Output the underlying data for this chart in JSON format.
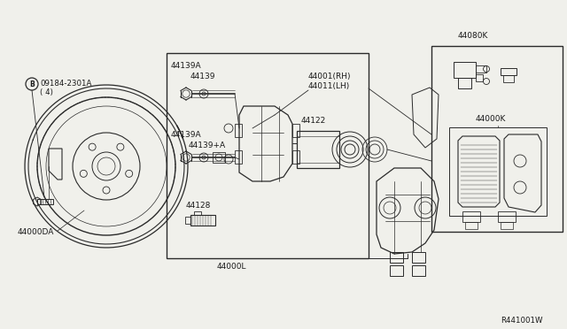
{
  "bg_color": "#f0f0eb",
  "line_color": "#2a2a2a",
  "text_color": "#1a1a1a",
  "watermark": "R441001W",
  "parts": {
    "circle_bolt_label": "09184-2301A",
    "circle_bolt_label2": "( 4)",
    "rotor_label": "44000DA",
    "caliper_asm_label": "44000L",
    "bolt1_top_label": "44139A",
    "bolt1_bot_label": "44139",
    "bolt2_top_label": "44139A",
    "bolt2_bot_label": "44139+A",
    "caliper_rh_label": "44001(RH)",
    "caliper_lh_label": "44011(LH)",
    "piston_label": "44122",
    "bleed_label": "44128",
    "pad_asm_label": "44000K",
    "pad_top_label": "44080K"
  },
  "fig_width": 6.4,
  "fig_height": 3.72,
  "dpi": 100
}
